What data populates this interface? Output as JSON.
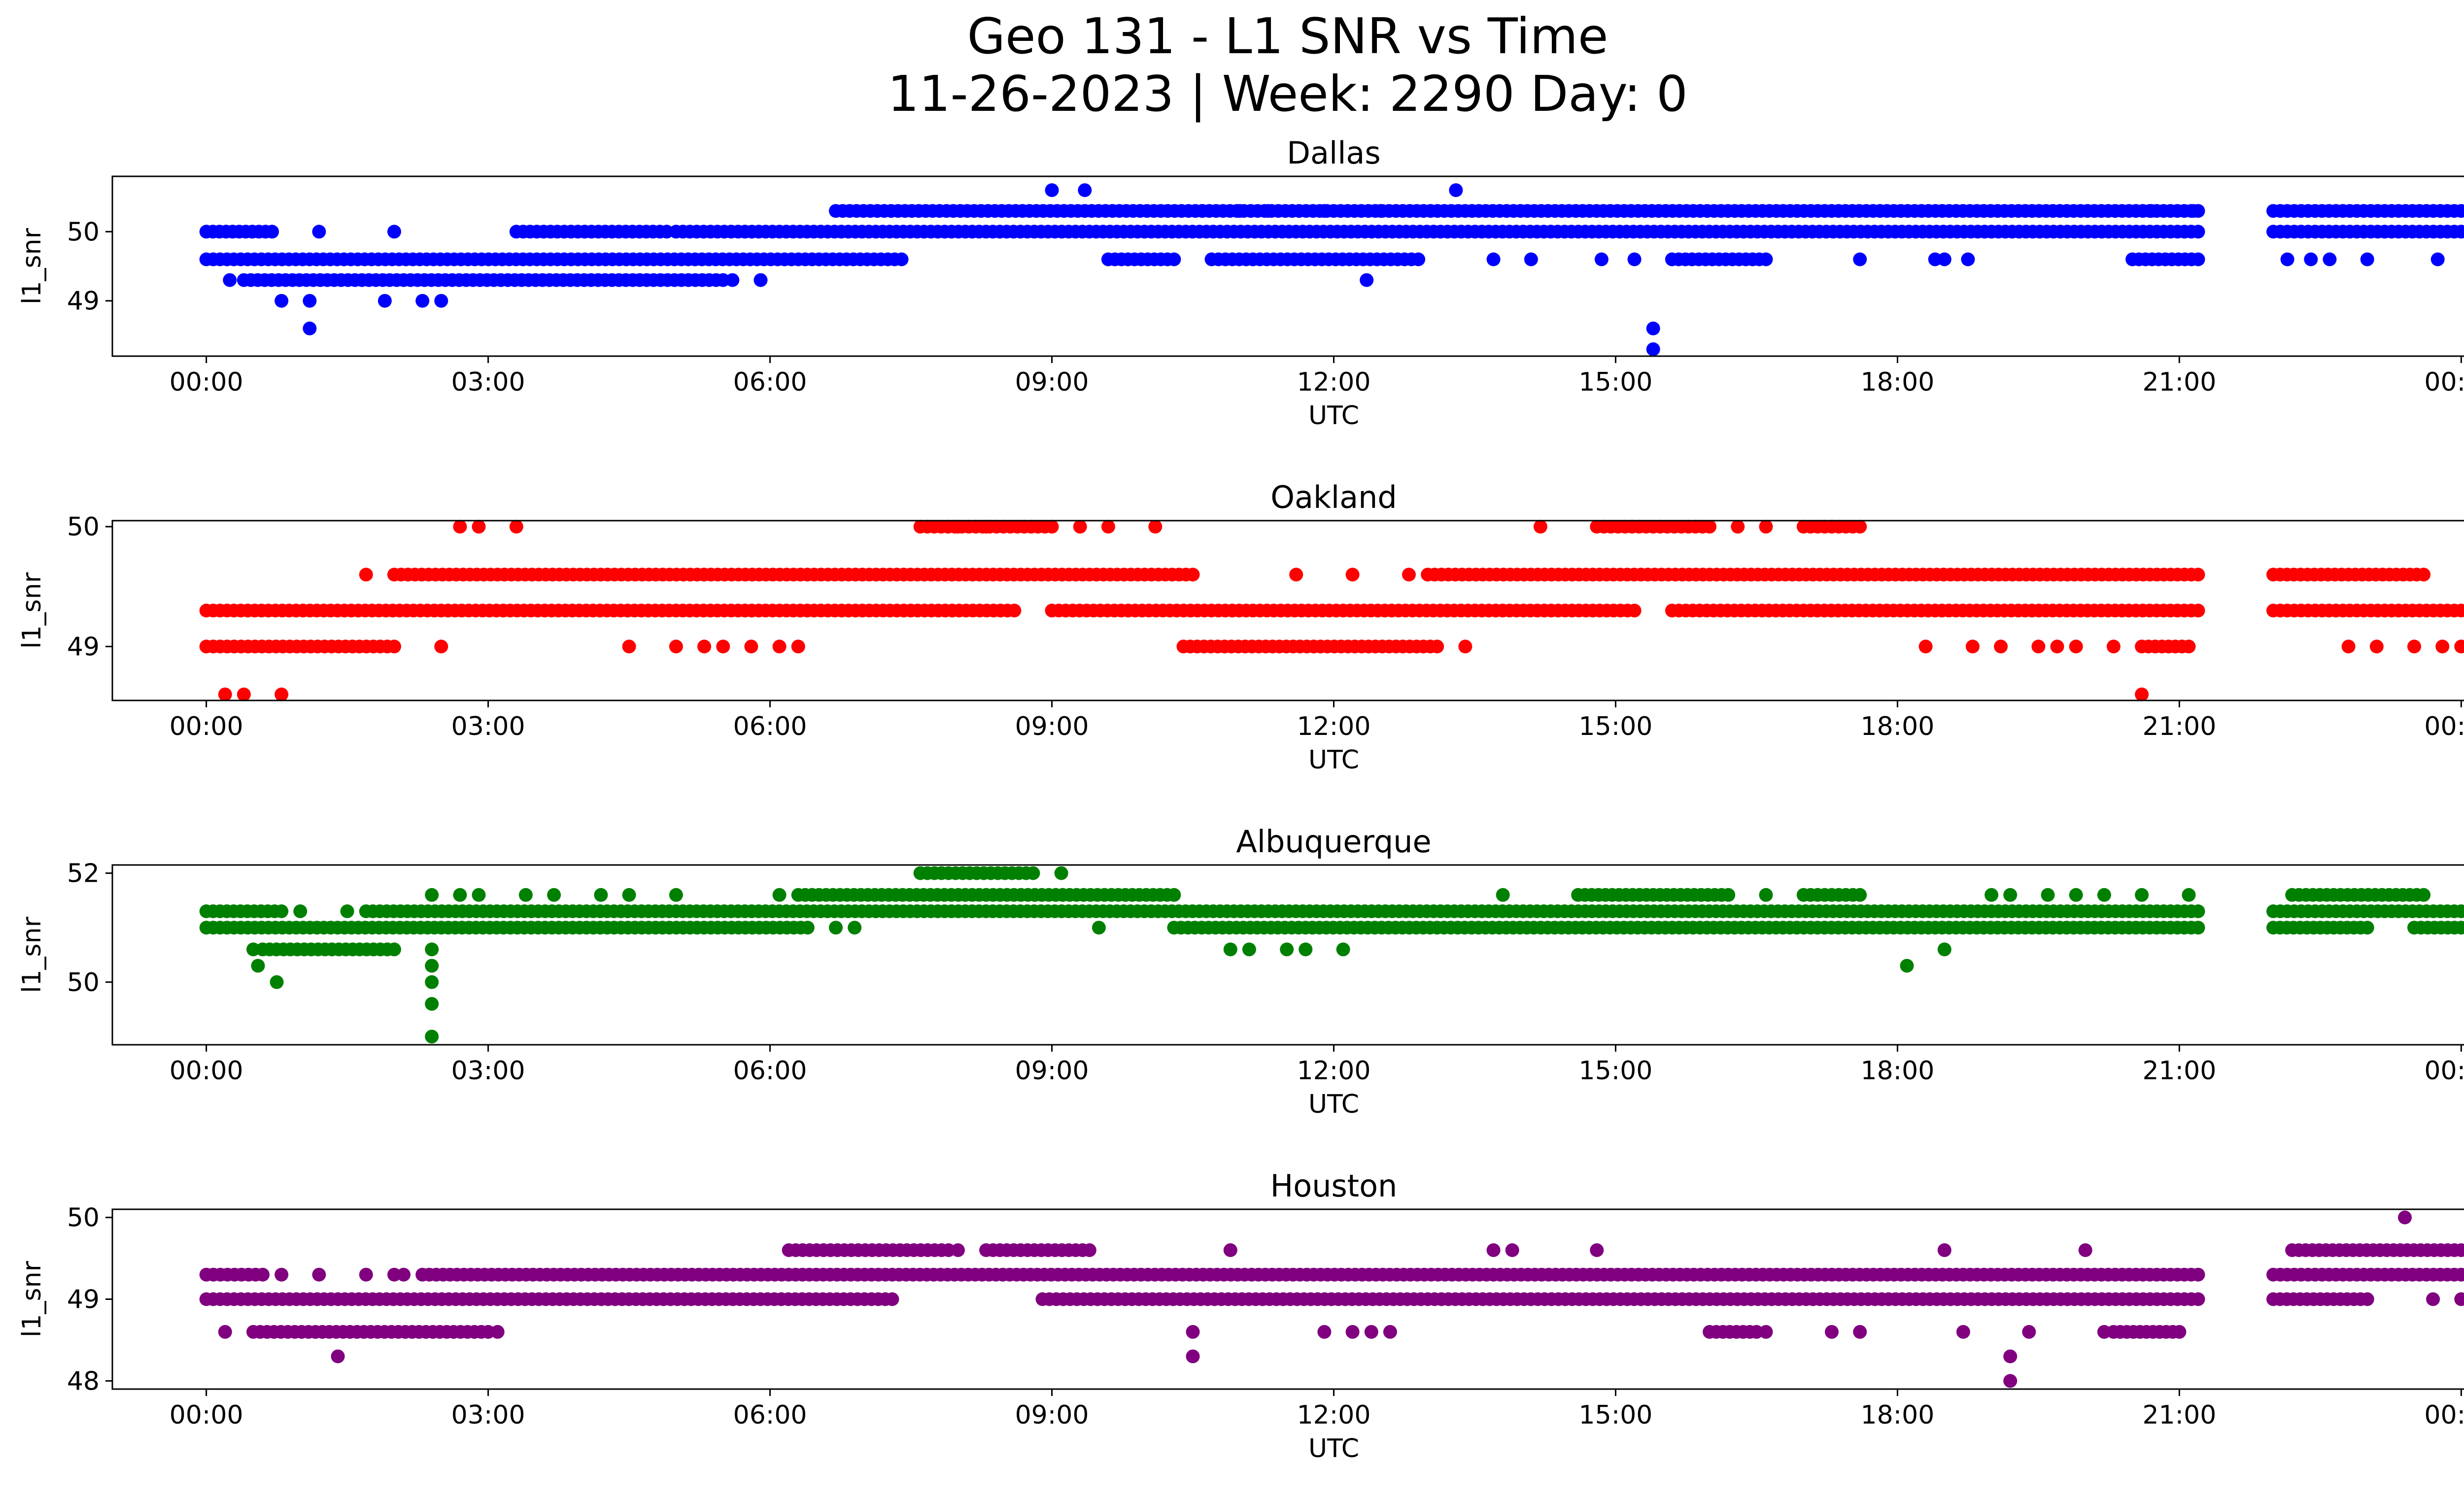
{
  "figure": {
    "title_line1": "Geo 131 - L1 SNR vs Time",
    "title_line2": "11-26-2023 | Week: 2290 Day: 0"
  },
  "chart_data": [
    {
      "type": "scatter",
      "title": "Dallas",
      "xlabel": "UTC",
      "ylabel": "l1_snr",
      "color": "#0000ff",
      "xlim_hours": [
        -1.0,
        25.0
      ],
      "ylim": [
        48.2,
        50.8
      ],
      "xticks": [
        "00:00",
        "03:00",
        "06:00",
        "09:00",
        "12:00",
        "15:00",
        "18:00",
        "21:00",
        "00:00"
      ],
      "yticks": [
        49,
        50
      ],
      "bands": [
        {
          "y": 50.3,
          "segments": [
            [
              6.7,
              21.2
            ],
            [
              22.0,
              24.0
            ]
          ]
        },
        {
          "y": 50.0,
          "segments": [
            [
              0.0,
              0.7
            ],
            [
              3.3,
              4.9
            ],
            [
              5.0,
              21.2
            ],
            [
              22.0,
              24.0
            ]
          ]
        },
        {
          "y": 49.6,
          "segments": [
            [
              0.0,
              7.4
            ],
            [
              9.6,
              10.3
            ],
            [
              10.7,
              12.9
            ],
            [
              15.6,
              16.6
            ],
            [
              20.5,
              21.2
            ]
          ]
        },
        {
          "y": 49.3,
          "segments": [
            [
              0.4,
              5.5
            ]
          ]
        }
      ],
      "points": [
        [
          0.25,
          49.3
        ],
        [
          0.8,
          49.0
        ],
        [
          1.1,
          49.0
        ],
        [
          1.2,
          50.0
        ],
        [
          1.1,
          48.6
        ],
        [
          1.9,
          49.0
        ],
        [
          2.0,
          50.0
        ],
        [
          2.3,
          49.0
        ],
        [
          2.5,
          49.0
        ],
        [
          5.6,
          49.3
        ],
        [
          5.9,
          49.3
        ],
        [
          9.0,
          50.6
        ],
        [
          9.35,
          50.6
        ],
        [
          10.6,
          50.3
        ],
        [
          11.0,
          50.3
        ],
        [
          11.3,
          50.3
        ],
        [
          11.9,
          50.3
        ],
        [
          12.35,
          49.3
        ],
        [
          12.5,
          50.3
        ],
        [
          13.3,
          50.6
        ],
        [
          13.7,
          49.6
        ],
        [
          14.1,
          49.6
        ],
        [
          14.85,
          49.6
        ],
        [
          15.2,
          49.6
        ],
        [
          15.4,
          48.6
        ],
        [
          15.4,
          48.3
        ],
        [
          17.6,
          49.6
        ],
        [
          18.4,
          49.6
        ],
        [
          18.5,
          49.6
        ],
        [
          18.75,
          49.6
        ],
        [
          20.7,
          50.3
        ],
        [
          21.15,
          50.3
        ],
        [
          22.15,
          49.6
        ],
        [
          22.4,
          49.6
        ],
        [
          22.6,
          49.6
        ],
        [
          23.0,
          49.6
        ],
        [
          23.75,
          49.6
        ]
      ]
    },
    {
      "type": "scatter",
      "title": "Oakland",
      "xlabel": "UTC",
      "ylabel": "l1_snr",
      "color": "#ff0000",
      "xlim_hours": [
        -1.0,
        25.0
      ],
      "ylim": [
        48.55,
        50.05
      ],
      "xticks": [
        "00:00",
        "03:00",
        "06:00",
        "09:00",
        "12:00",
        "15:00",
        "18:00",
        "21:00",
        "00:00"
      ],
      "yticks": [
        49,
        50
      ],
      "bands": [
        {
          "y": 50.0,
          "segments": [
            [
              7.6,
              9.0
            ],
            [
              14.8,
              16.0
            ],
            [
              17.0,
              17.6
            ]
          ]
        },
        {
          "y": 49.6,
          "segments": [
            [
              2.0,
              10.5
            ],
            [
              13.0,
              21.2
            ],
            [
              22.0,
              23.6
            ]
          ]
        },
        {
          "y": 49.3,
          "segments": [
            [
              0.0,
              8.6
            ],
            [
              9.0,
              15.2
            ],
            [
              15.6,
              21.2
            ],
            [
              22.0,
              24.0
            ]
          ]
        },
        {
          "y": 49.0,
          "segments": [
            [
              0.0,
              2.0
            ],
            [
              10.4,
              13.1
            ],
            [
              20.6,
              21.1
            ]
          ]
        }
      ],
      "points": [
        [
          0.2,
          48.6
        ],
        [
          0.4,
          48.6
        ],
        [
          0.8,
          48.6
        ],
        [
          1.7,
          49.6
        ],
        [
          2.7,
          50.0
        ],
        [
          2.9,
          50.0
        ],
        [
          3.3,
          50.0
        ],
        [
          2.5,
          49.0
        ],
        [
          4.5,
          49.0
        ],
        [
          5.0,
          49.0
        ],
        [
          5.3,
          49.0
        ],
        [
          5.5,
          49.0
        ],
        [
          5.8,
          49.0
        ],
        [
          6.1,
          49.0
        ],
        [
          6.3,
          49.0
        ],
        [
          8.0,
          50.0
        ],
        [
          8.3,
          50.0
        ],
        [
          9.3,
          50.0
        ],
        [
          9.6,
          50.0
        ],
        [
          10.1,
          50.0
        ],
        [
          11.6,
          49.6
        ],
        [
          12.2,
          49.6
        ],
        [
          12.8,
          49.6
        ],
        [
          13.4,
          49.0
        ],
        [
          14.2,
          50.0
        ],
        [
          16.3,
          50.0
        ],
        [
          16.6,
          50.0
        ],
        [
          18.3,
          49.0
        ],
        [
          18.8,
          49.0
        ],
        [
          19.1,
          49.0
        ],
        [
          19.5,
          49.0
        ],
        [
          19.7,
          49.0
        ],
        [
          19.9,
          49.0
        ],
        [
          20.3,
          49.0
        ],
        [
          20.6,
          48.6
        ],
        [
          22.8,
          49.0
        ],
        [
          23.1,
          49.0
        ],
        [
          23.5,
          49.0
        ],
        [
          23.8,
          49.0
        ],
        [
          24.0,
          49.0
        ]
      ]
    },
    {
      "type": "scatter",
      "title": "Albuquerque",
      "xlabel": "UTC",
      "ylabel": "l1_snr",
      "color": "#008000",
      "xlim_hours": [
        -1.0,
        25.0
      ],
      "ylim": [
        48.85,
        52.15
      ],
      "xticks": [
        "00:00",
        "03:00",
        "06:00",
        "09:00",
        "12:00",
        "15:00",
        "18:00",
        "21:00",
        "00:00"
      ],
      "yticks": [
        50,
        52
      ],
      "bands": [
        {
          "y": 52.0,
          "segments": [
            [
              7.6,
              8.8
            ]
          ]
        },
        {
          "y": 51.6,
          "segments": [
            [
              6.3,
              10.3
            ],
            [
              14.6,
              16.2
            ],
            [
              17.0,
              17.6
            ],
            [
              22.2,
              23.6
            ]
          ]
        },
        {
          "y": 51.3,
          "segments": [
            [
              0.0,
              0.8
            ],
            [
              1.7,
              21.2
            ],
            [
              22.0,
              24.0
            ]
          ]
        },
        {
          "y": 51.0,
          "segments": [
            [
              0.0,
              6.4
            ],
            [
              10.3,
              21.2
            ],
            [
              22.0,
              23.0
            ],
            [
              23.5,
              24.0
            ]
          ]
        },
        {
          "y": 50.6,
          "segments": [
            [
              0.6,
              2.0
            ]
          ]
        }
      ],
      "points": [
        [
          0.5,
          50.6
        ],
        [
          0.55,
          50.3
        ],
        [
          0.75,
          50.0
        ],
        [
          1.0,
          51.3
        ],
        [
          1.5,
          51.3
        ],
        [
          2.4,
          51.6
        ],
        [
          2.4,
          50.6
        ],
        [
          2.4,
          50.3
        ],
        [
          2.4,
          50.0
        ],
        [
          2.4,
          49.6
        ],
        [
          2.4,
          49.0
        ],
        [
          2.7,
          51.6
        ],
        [
          2.9,
          51.6
        ],
        [
          3.4,
          51.6
        ],
        [
          3.7,
          51.6
        ],
        [
          4.2,
          51.6
        ],
        [
          4.5,
          51.6
        ],
        [
          5.0,
          51.6
        ],
        [
          6.1,
          51.6
        ],
        [
          6.7,
          51.0
        ],
        [
          6.9,
          51.0
        ],
        [
          9.1,
          52.0
        ],
        [
          9.5,
          51.0
        ],
        [
          10.9,
          50.6
        ],
        [
          11.1,
          50.6
        ],
        [
          11.5,
          50.6
        ],
        [
          11.7,
          50.6
        ],
        [
          12.1,
          50.6
        ],
        [
          13.8,
          51.6
        ],
        [
          16.6,
          51.6
        ],
        [
          18.1,
          50.3
        ],
        [
          18.5,
          50.6
        ],
        [
          19.0,
          51.6
        ],
        [
          19.2,
          51.6
        ],
        [
          19.6,
          51.6
        ],
        [
          19.9,
          51.6
        ],
        [
          20.2,
          51.6
        ],
        [
          20.6,
          51.6
        ],
        [
          21.1,
          51.6
        ]
      ]
    },
    {
      "type": "scatter",
      "title": "Houston",
      "xlabel": "UTC",
      "ylabel": "l1_snr",
      "color": "#800080",
      "xlim_hours": [
        -1.0,
        25.0
      ],
      "ylim": [
        47.9,
        50.1
      ],
      "xticks": [
        "00:00",
        "03:00",
        "06:00",
        "09:00",
        "12:00",
        "15:00",
        "18:00",
        "21:00",
        "00:00"
      ],
      "yticks": [
        48,
        49,
        50
      ],
      "bands": [
        {
          "y": 49.6,
          "segments": [
            [
              6.2,
              7.9
            ],
            [
              8.3,
              9.4
            ],
            [
              22.2,
              24.0
            ]
          ]
        },
        {
          "y": 49.3,
          "segments": [
            [
              0.0,
              0.6
            ],
            [
              2.3,
              21.2
            ],
            [
              22.0,
              24.0
            ]
          ]
        },
        {
          "y": 49.0,
          "segments": [
            [
              0.0,
              7.3
            ],
            [
              8.9,
              21.2
            ],
            [
              22.0,
              23.0
            ]
          ]
        },
        {
          "y": 48.6,
          "segments": [
            [
              0.5,
              3.0
            ],
            [
              16.0,
              16.5
            ],
            [
              20.3,
              21.0
            ]
          ]
        }
      ],
      "points": [
        [
          0.2,
          48.6
        ],
        [
          0.8,
          49.3
        ],
        [
          1.2,
          49.3
        ],
        [
          1.4,
          48.3
        ],
        [
          1.7,
          49.3
        ],
        [
          2.0,
          49.3
        ],
        [
          2.1,
          49.3
        ],
        [
          3.1,
          48.6
        ],
        [
          8.0,
          49.6
        ],
        [
          10.5,
          48.6
        ],
        [
          10.5,
          48.3
        ],
        [
          10.9,
          49.6
        ],
        [
          11.9,
          48.6
        ],
        [
          12.2,
          48.6
        ],
        [
          12.4,
          48.6
        ],
        [
          12.6,
          48.6
        ],
        [
          13.7,
          49.6
        ],
        [
          13.9,
          49.6
        ],
        [
          14.8,
          49.6
        ],
        [
          16.6,
          48.6
        ],
        [
          17.3,
          48.6
        ],
        [
          17.6,
          48.6
        ],
        [
          18.5,
          49.6
        ],
        [
          18.7,
          48.6
        ],
        [
          19.2,
          48.3
        ],
        [
          19.2,
          48.0
        ],
        [
          19.4,
          48.6
        ],
        [
          20.0,
          49.6
        ],
        [
          20.2,
          48.6
        ],
        [
          23.4,
          50.0
        ],
        [
          23.7,
          49.0
        ],
        [
          24.0,
          49.0
        ]
      ]
    }
  ]
}
